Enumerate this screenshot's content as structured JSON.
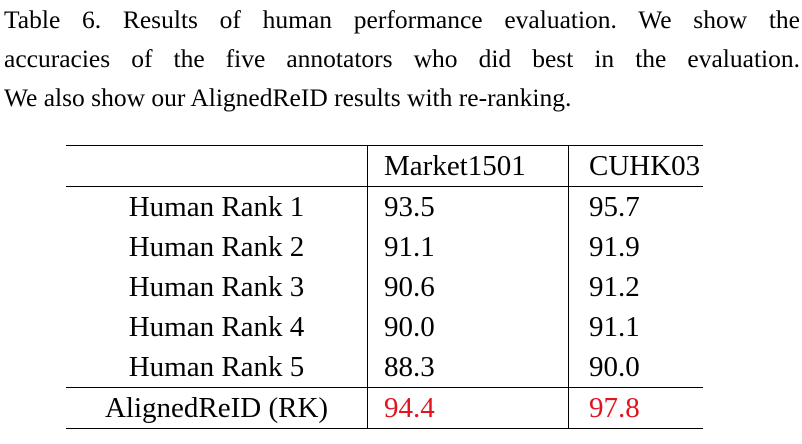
{
  "caption": {
    "lines": [
      "Table 6. Results of human performance evaluation. We show the",
      "accuracies of the five annotators who did best in the evaluation.",
      "We also show our AlignedReID results with re-ranking."
    ]
  },
  "table": {
    "headers": [
      "",
      "Market1501",
      "CUHK03"
    ],
    "rows": [
      {
        "method": "Human Rank 1",
        "market": "93.5",
        "cuhk": "95.7"
      },
      {
        "method": "Human Rank 2",
        "market": "91.1",
        "cuhk": "91.9"
      },
      {
        "method": "Human Rank 3",
        "market": "90.6",
        "cuhk": "91.2"
      },
      {
        "method": "Human Rank 4",
        "market": "90.0",
        "cuhk": "91.1"
      },
      {
        "method": "Human Rank 5",
        "market": "88.3",
        "cuhk": "90.0"
      },
      {
        "method": "AlignedReID (RK)",
        "market": "94.4",
        "cuhk": "97.8"
      }
    ],
    "colors": {
      "highlight": "#e0161e",
      "text": "#000000"
    }
  }
}
